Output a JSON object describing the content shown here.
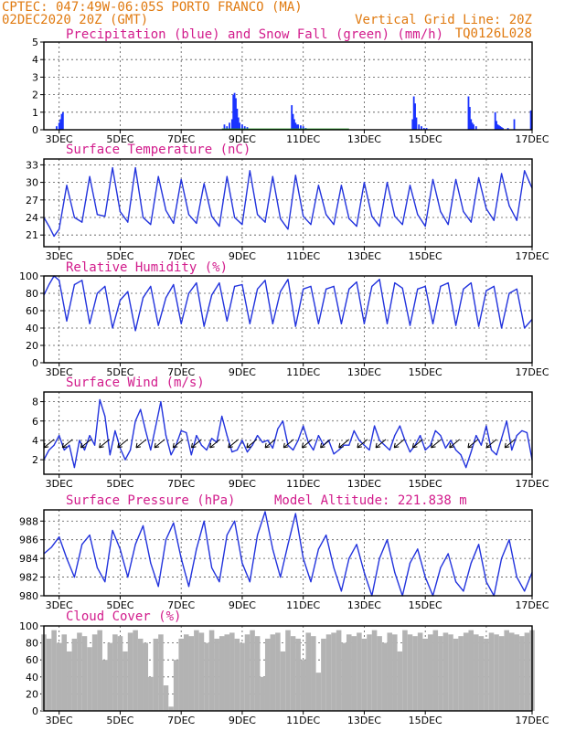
{
  "header": {
    "line1": "CPTEC:   047:49W-06:05S  PORTO FRANCO (MA)",
    "line2_left": "02DEC2020 20Z (GMT)",
    "line2_right": "Vertical Grid Line: 20Z",
    "line3_right": "TQ0126L028"
  },
  "x_labels": [
    "3DEC",
    "5DEC",
    "7DEC",
    "9DEC",
    "11DEC",
    "13DEC",
    "15DEC",
    "17DEC"
  ],
  "colors": {
    "line": "#2233dd",
    "precip": "#1a33ff",
    "snow": "#2a9a2a",
    "cloud": "#b3b3b3",
    "header": "#e07a10",
    "title": "#d21c8c"
  },
  "chart_data": [
    {
      "id": "precip",
      "type": "bar",
      "title": "Precipitation (blue) and Snow Fall (green) (mm/h)",
      "ylim": [
        0,
        5
      ],
      "yticks": [
        0,
        1,
        2,
        3,
        4,
        5
      ],
      "x_unit": "hours since 02DEC2020 20Z",
      "series": [
        {
          "name": "Precipitation",
          "color": "#1a33ff",
          "x": [
            10,
            12,
            13,
            14,
            15,
            142,
            144,
            146,
            148,
            149,
            150,
            151,
            152,
            153,
            154,
            156,
            158,
            160,
            195,
            196,
            197,
            198,
            199,
            200,
            202,
            204,
            206,
            290,
            291,
            292,
            293,
            295,
            297,
            299,
            301,
            334,
            335,
            336,
            337,
            338,
            340,
            355,
            356,
            357,
            358,
            359,
            360,
            361,
            365,
            370,
            383
          ],
          "values": [
            0.2,
            0.4,
            0.6,
            0.9,
            1.0,
            0.3,
            0.2,
            0.4,
            0.6,
            2.0,
            2.1,
            1.8,
            1.2,
            0.7,
            0.4,
            0.3,
            0.2,
            0.15,
            1.4,
            0.9,
            0.6,
            0.4,
            0.3,
            0.3,
            0.25,
            0.2,
            0.1,
            0.6,
            1.9,
            1.5,
            0.7,
            0.3,
            0.2,
            0.1,
            0.1,
            1.9,
            1.3,
            0.6,
            0.4,
            0.3,
            0.2,
            1.0,
            0.5,
            0.3,
            0.25,
            0.2,
            0.15,
            0.1,
            0.1,
            0.6,
            1.1
          ]
        },
        {
          "name": "Snow Fall",
          "color": "#2a9a2a",
          "x": [],
          "values": []
        }
      ]
    },
    {
      "id": "temp",
      "type": "line",
      "title": "Surface Temperature (nC)",
      "ylim": [
        19,
        34
      ],
      "yticks": [
        21,
        24,
        27,
        30,
        33
      ],
      "x_unit": "hours since 02DEC2020 20Z",
      "x": [
        0,
        4,
        8,
        12,
        18,
        24,
        30,
        36,
        42,
        48,
        54,
        60,
        66,
        72,
        78,
        84,
        90,
        96,
        102,
        108,
        114,
        120,
        126,
        132,
        138,
        144,
        150,
        156,
        162,
        168,
        174,
        180,
        186,
        192,
        198,
        204,
        210,
        216,
        222,
        228,
        234,
        240,
        246,
        252,
        258,
        264,
        270,
        276,
        282,
        288,
        294,
        300,
        306,
        312,
        318,
        324,
        330,
        336,
        342,
        348,
        354,
        360,
        366,
        372,
        378,
        384
      ],
      "values": [
        24.0,
        22.5,
        20.8,
        22.0,
        29.5,
        24.0,
        23.2,
        31.0,
        24.5,
        24.2,
        32.5,
        25.0,
        23.2,
        32.5,
        24.0,
        22.8,
        31.0,
        25.2,
        23.0,
        30.5,
        24.5,
        23.0,
        29.8,
        24.2,
        22.5,
        31.0,
        24.0,
        22.8,
        32.0,
        24.5,
        23.2,
        31.0,
        23.8,
        22.0,
        31.2,
        24.2,
        22.8,
        29.5,
        24.5,
        22.8,
        29.5,
        23.8,
        22.5,
        30.0,
        24.2,
        22.5,
        30.0,
        24.2,
        22.8,
        29.5,
        24.5,
        22.5,
        30.5,
        25.0,
        22.8,
        30.5,
        25.0,
        23.2,
        30.8,
        25.5,
        23.5,
        31.5,
        26.0,
        23.5,
        32.0,
        29.0
      ]
    },
    {
      "id": "rh",
      "type": "line",
      "title": "Relative Humidity (%)",
      "ylim": [
        0,
        100
      ],
      "yticks": [
        0,
        20,
        40,
        60,
        80,
        100
      ],
      "x_unit": "hours since 02DEC2020 20Z",
      "x": [
        0,
        4,
        8,
        12,
        18,
        24,
        30,
        36,
        42,
        48,
        54,
        60,
        66,
        72,
        78,
        84,
        90,
        96,
        102,
        108,
        114,
        120,
        126,
        132,
        138,
        144,
        150,
        156,
        162,
        168,
        174,
        180,
        186,
        192,
        198,
        204,
        210,
        216,
        222,
        228,
        234,
        240,
        246,
        252,
        258,
        264,
        270,
        276,
        282,
        288,
        294,
        300,
        306,
        312,
        318,
        324,
        330,
        336,
        342,
        348,
        354,
        360,
        366,
        372,
        378,
        384
      ],
      "values": [
        78,
        90,
        100,
        95,
        48,
        90,
        95,
        45,
        80,
        88,
        40,
        72,
        82,
        37,
        75,
        88,
        43,
        75,
        90,
        45,
        80,
        92,
        42,
        78,
        92,
        48,
        88,
        90,
        45,
        85,
        95,
        45,
        82,
        96,
        42,
        85,
        88,
        45,
        85,
        88,
        45,
        85,
        93,
        45,
        88,
        96,
        45,
        92,
        86,
        43,
        85,
        88,
        45,
        88,
        92,
        43,
        85,
        92,
        42,
        83,
        88,
        40,
        80,
        85,
        40,
        50
      ]
    },
    {
      "id": "wind",
      "type": "line",
      "title": "Surface Wind (m/s)",
      "ylim": [
        0.5,
        9.0
      ],
      "yticks": [
        2,
        4,
        6,
        8
      ],
      "x_unit": "hours since 02DEC2020 20Z",
      "x": [
        0,
        4,
        8,
        12,
        16,
        20,
        24,
        28,
        32,
        36,
        40,
        44,
        48,
        52,
        56,
        60,
        64,
        68,
        72,
        76,
        80,
        84,
        88,
        92,
        96,
        100,
        104,
        108,
        112,
        116,
        120,
        124,
        128,
        132,
        136,
        140,
        144,
        148,
        152,
        156,
        160,
        164,
        168,
        172,
        176,
        180,
        184,
        188,
        192,
        196,
        200,
        204,
        208,
        212,
        216,
        220,
        224,
        228,
        232,
        236,
        240,
        244,
        248,
        252,
        256,
        260,
        264,
        268,
        272,
        276,
        280,
        284,
        288,
        292,
        296,
        300,
        304,
        308,
        312,
        316,
        320,
        324,
        328,
        332,
        336,
        340,
        344,
        348,
        352,
        356,
        360,
        364,
        368,
        372,
        376,
        380,
        384
      ],
      "values": [
        2.0,
        3.0,
        3.5,
        4.5,
        3.0,
        3.5,
        1.2,
        4.0,
        3.0,
        4.5,
        3.5,
        8.2,
        6.5,
        2.5,
        5.0,
        3.2,
        2.0,
        3.0,
        6.0,
        7.2,
        5.0,
        3.0,
        5.5,
        8.0,
        4.5,
        2.5,
        3.5,
        5.0,
        4.8,
        2.5,
        4.5,
        3.5,
        3.0,
        4.2,
        3.8,
        6.5,
        4.5,
        2.8,
        3.0,
        4.0,
        2.8,
        3.5,
        4.5,
        3.8,
        4.0,
        3.2,
        5.2,
        6.0,
        3.5,
        3.0,
        4.0,
        5.5,
        3.8,
        3.0,
        4.5,
        3.5,
        4.0,
        2.6,
        3.0,
        3.5,
        3.5,
        5.0,
        4.0,
        3.5,
        3.0,
        5.5,
        4.0,
        3.5,
        3.0,
        4.5,
        5.5,
        4.0,
        2.8,
        3.5,
        4.5,
        3.0,
        3.5,
        5.0,
        4.5,
        3.2,
        4.0,
        3.0,
        2.5,
        1.2,
        2.8,
        4.5,
        3.5,
        5.5,
        3.0,
        2.5,
        4.2,
        6.0,
        3.0,
        4.5,
        5.0,
        4.8,
        2.0
      ]
    },
    {
      "id": "pres",
      "type": "line",
      "title": "Surface Pressure (hPa)",
      "annotation": "Model Altitude: 221.838 m",
      "ylim": [
        980,
        989.2
      ],
      "yticks": [
        980,
        982,
        984,
        986,
        988
      ],
      "x_unit": "hours since 02DEC2020 20Z",
      "x": [
        0,
        6,
        12,
        18,
        24,
        30,
        36,
        42,
        48,
        54,
        60,
        66,
        72,
        78,
        84,
        90,
        96,
        102,
        108,
        114,
        120,
        126,
        132,
        138,
        144,
        150,
        156,
        162,
        168,
        174,
        180,
        186,
        192,
        198,
        204,
        210,
        216,
        222,
        228,
        234,
        240,
        246,
        252,
        258,
        264,
        270,
        276,
        282,
        288,
        294,
        300,
        306,
        312,
        318,
        324,
        330,
        336,
        342,
        348,
        354,
        360,
        366,
        372,
        378,
        384
      ],
      "values": [
        984.5,
        985.2,
        986.3,
        984.0,
        982.0,
        985.5,
        986.5,
        983.0,
        981.5,
        987.0,
        985.0,
        982.0,
        985.5,
        987.5,
        983.5,
        981.0,
        986.0,
        987.8,
        984.0,
        981.0,
        985.0,
        988.0,
        983.0,
        981.5,
        986.5,
        988.0,
        983.5,
        981.5,
        986.5,
        989.0,
        985.0,
        982.0,
        985.5,
        988.8,
        984.0,
        981.5,
        985.0,
        986.5,
        983.0,
        980.5,
        984.0,
        985.5,
        982.5,
        980.0,
        984.0,
        986.0,
        982.5,
        980.0,
        983.5,
        985.0,
        982.0,
        980.0,
        983.0,
        984.5,
        981.5,
        980.5,
        983.5,
        985.5,
        981.5,
        980.0,
        984.0,
        986.0,
        982.0,
        980.5,
        982.5
      ]
    },
    {
      "id": "cloud",
      "type": "area",
      "title": "Cloud Cover (%)",
      "ylim": [
        0,
        100
      ],
      "yticks": [
        0,
        20,
        40,
        60,
        80,
        100
      ],
      "x_unit": "hours since 02DEC2020 20Z",
      "x": [
        0,
        4,
        8,
        12,
        16,
        20,
        24,
        28,
        32,
        36,
        40,
        44,
        48,
        52,
        56,
        60,
        64,
        68,
        72,
        76,
        80,
        84,
        88,
        92,
        96,
        100,
        104,
        108,
        112,
        116,
        120,
        124,
        128,
        132,
        136,
        140,
        144,
        148,
        152,
        156,
        160,
        164,
        168,
        172,
        176,
        180,
        184,
        188,
        192,
        196,
        200,
        204,
        208,
        212,
        216,
        220,
        224,
        228,
        232,
        236,
        240,
        244,
        248,
        252,
        256,
        260,
        264,
        268,
        272,
        276,
        280,
        284,
        288,
        292,
        296,
        300,
        304,
        308,
        312,
        316,
        320,
        324,
        328,
        332,
        336,
        340,
        344,
        348,
        352,
        356,
        360,
        364,
        368,
        372,
        376,
        380,
        384
      ],
      "values": [
        90,
        85,
        95,
        80,
        90,
        70,
        85,
        92,
        88,
        75,
        90,
        95,
        60,
        80,
        90,
        88,
        70,
        92,
        95,
        85,
        80,
        40,
        85,
        90,
        30,
        5,
        60,
        85,
        90,
        88,
        95,
        92,
        80,
        95,
        85,
        88,
        90,
        92,
        85,
        80,
        90,
        95,
        88,
        40,
        85,
        90,
        92,
        70,
        95,
        88,
        85,
        60,
        92,
        88,
        45,
        85,
        90,
        92,
        95,
        80,
        90,
        88,
        92,
        85,
        90,
        95,
        88,
        80,
        92,
        90,
        70,
        95,
        90,
        88,
        92,
        85,
        90,
        95,
        88,
        92,
        90,
        85,
        88,
        92,
        95,
        90,
        88,
        85,
        92,
        90,
        88,
        95,
        92,
        90,
        88,
        92,
        95
      ]
    }
  ]
}
